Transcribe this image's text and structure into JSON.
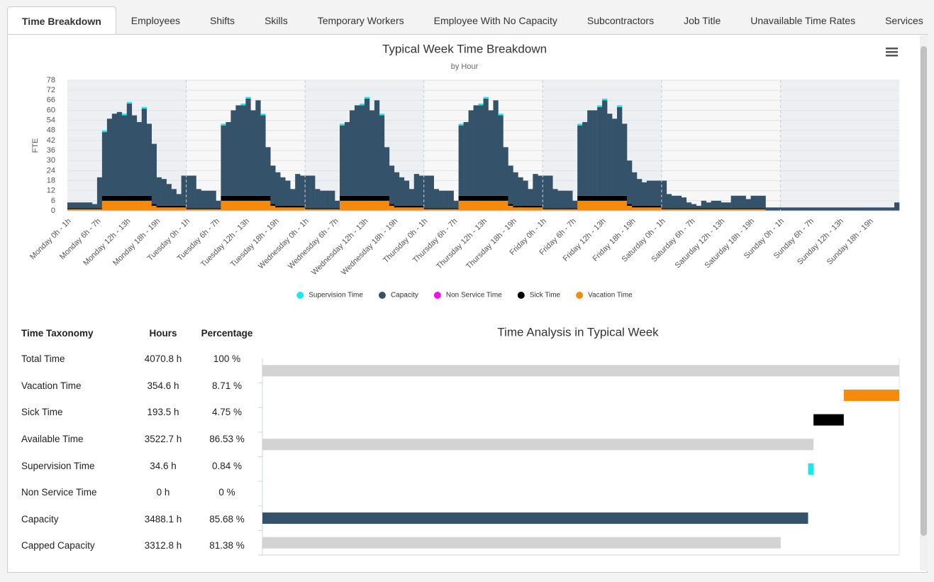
{
  "tabs": [
    "Time Breakdown",
    "Employees",
    "Shifts",
    "Skills",
    "Temporary Workers",
    "Employee With No Capacity",
    "Subcontractors",
    "Job Title",
    "Unavailable Time Rates",
    "Services"
  ],
  "chart_data": [
    {
      "type": "bar",
      "stacked": true,
      "title": "Typical Week Time Breakdown",
      "subtitle": "by Hour",
      "y_label": "FTE",
      "categories": [
        "Monday 0h - 1h",
        null,
        null,
        null,
        null,
        null,
        "Monday 6h - 7h",
        null,
        null,
        null,
        null,
        null,
        "Monday 12h - 13h",
        null,
        null,
        null,
        null,
        null,
        "Monday 18h - 19h",
        null,
        null,
        null,
        null,
        null,
        "Tuesday 0h - 1h",
        null,
        null,
        null,
        null,
        null,
        "Tuesday 6h - 7h",
        null,
        null,
        null,
        null,
        null,
        "Tuesday 12h - 13h",
        null,
        null,
        null,
        null,
        null,
        "Tuesday 18h - 19h",
        null,
        null,
        null,
        null,
        null,
        "Wednesday 0h - 1h",
        null,
        null,
        null,
        null,
        null,
        "Wednesday 6h - 7h",
        null,
        null,
        null,
        null,
        null,
        "Wednesday 12h - 13h",
        null,
        null,
        null,
        null,
        null,
        "Wednesday 18h - 19h",
        null,
        null,
        null,
        null,
        null,
        "Thursday 0h - 1h",
        null,
        null,
        null,
        null,
        null,
        "Thursday 6h - 7h",
        null,
        null,
        null,
        null,
        null,
        "Thursday 12h - 13h",
        null,
        null,
        null,
        null,
        null,
        "Thursday 18h - 19h",
        null,
        null,
        null,
        null,
        null,
        "Friday 0h - 1h",
        null,
        null,
        null,
        null,
        null,
        "Friday 6h - 7h",
        null,
        null,
        null,
        null,
        null,
        "Friday 12h - 13h",
        null,
        null,
        null,
        null,
        null,
        "Friday 18h - 19h",
        null,
        null,
        null,
        null,
        null,
        "Saturday 0h - 1h",
        null,
        null,
        null,
        null,
        null,
        "Saturday 6h - 7h",
        null,
        null,
        null,
        null,
        null,
        "Saturday 12h - 13h",
        null,
        null,
        null,
        null,
        null,
        "Saturday 18h - 19h",
        null,
        null,
        null,
        null,
        null,
        "Sunday 0h - 1h",
        null,
        null,
        null,
        null,
        null,
        "Sunday 6h - 7h",
        null,
        null,
        null,
        null,
        null,
        "Sunday 12h - 13h",
        null,
        null,
        null,
        null,
        null,
        "Sunday 18h - 19h",
        null,
        null,
        null,
        null,
        null
      ],
      "series": [
        {
          "name": "Supervision Time",
          "color": "#1ae8f0",
          "values": [
            0,
            0,
            0,
            0,
            0,
            0,
            0,
            1,
            0,
            0,
            0,
            1,
            1,
            0,
            0,
            1,
            0,
            0,
            0,
            0,
            0,
            0,
            0,
            0,
            0,
            0,
            0,
            0,
            0,
            0,
            0,
            1,
            0,
            0,
            0,
            1,
            1,
            0,
            0,
            1,
            0,
            0,
            0,
            0,
            0,
            0,
            0,
            0,
            0,
            0,
            0,
            0,
            0,
            0,
            0,
            1,
            0,
            0,
            0,
            1,
            1,
            0,
            0,
            1,
            0,
            0,
            0,
            0,
            0,
            0,
            0,
            0,
            0,
            0,
            0,
            0,
            0,
            0,
            0,
            1,
            0,
            0,
            0,
            1,
            1,
            0,
            0,
            1,
            0,
            0,
            0,
            0,
            0,
            0,
            0,
            0,
            0,
            0,
            0,
            0,
            0,
            0,
            0,
            1,
            0,
            0,
            0,
            1,
            1,
            0,
            0,
            1,
            0,
            0,
            0,
            0,
            0,
            0,
            0,
            0,
            0,
            0,
            0,
            0,
            0,
            0,
            0,
            0,
            0,
            0,
            0,
            0,
            0,
            0,
            0,
            0,
            0,
            0,
            0,
            0,
            0,
            0,
            0,
            0,
            0,
            0,
            0,
            0,
            0,
            0,
            0,
            0,
            0,
            0,
            0,
            0,
            0,
            0,
            0,
            0,
            0,
            0,
            0,
            0,
            0,
            0,
            0,
            0
          ]
        },
        {
          "name": "Capacity",
          "color": "#34536b",
          "values": [
            3.5,
            3.5,
            3.5,
            3.5,
            3.5,
            2.5,
            18.5,
            38,
            46,
            49,
            50,
            48,
            55,
            48,
            44,
            52,
            43,
            36,
            17,
            16,
            13,
            10,
            7,
            18,
            19.5,
            19.5,
            11.5,
            10.5,
            10.5,
            10.5,
            4.5,
            42,
            44,
            51,
            54,
            54,
            58,
            51,
            57,
            48,
            29,
            23,
            20,
            17,
            15,
            10,
            19,
            18,
            19.5,
            19.5,
            11.5,
            10.5,
            10.5,
            10.5,
            4.5,
            42,
            44,
            51,
            54,
            54,
            58,
            51,
            57,
            48,
            29,
            23,
            20,
            17,
            15,
            10,
            19,
            18,
            19.5,
            19.5,
            11.5,
            10.5,
            10.5,
            10.5,
            4.5,
            42,
            44,
            51,
            54,
            54,
            58,
            51,
            57,
            48,
            29,
            23,
            20,
            17,
            15,
            10,
            19,
            18,
            19.5,
            19.5,
            11.5,
            10.5,
            10.5,
            10.5,
            4.5,
            42,
            44,
            51,
            51,
            53,
            57,
            49,
            46,
            53,
            43,
            26,
            20,
            16,
            14,
            15,
            15,
            15,
            16.5,
            8.5,
            7.5,
            7.5,
            6.5,
            3.5,
            2.5,
            1.5,
            4.5,
            3.5,
            4.5,
            4.5,
            3.5,
            3.5,
            7.5,
            7.5,
            7.5,
            5.5,
            7.5,
            7.5,
            7.5,
            2,
            2,
            2,
            2,
            2,
            2,
            2,
            2,
            2,
            2,
            2,
            2,
            2,
            2,
            2,
            2,
            2,
            2,
            2,
            2,
            2,
            2,
            2,
            2,
            2,
            2,
            5
          ]
        },
        {
          "name": "Non Service Time",
          "color": "#f00ff0",
          "values": [
            0,
            0,
            0,
            0,
            0,
            0,
            0,
            0,
            0,
            0,
            0,
            0,
            0,
            0,
            0,
            0,
            0,
            0,
            0,
            0,
            0,
            0,
            0,
            0,
            0,
            0,
            0,
            0,
            0,
            0,
            0,
            0,
            0,
            0,
            0,
            0,
            0,
            0,
            0,
            0,
            0,
            0,
            0,
            0,
            0,
            0,
            0,
            0,
            0,
            0,
            0,
            0,
            0,
            0,
            0,
            0,
            0,
            0,
            0,
            0,
            0,
            0,
            0,
            0,
            0,
            0,
            0,
            0,
            0,
            0,
            0,
            0,
            0,
            0,
            0,
            0,
            0,
            0,
            0,
            0,
            0,
            0,
            0,
            0,
            0,
            0,
            0,
            0,
            0,
            0,
            0,
            0,
            0,
            0,
            0,
            0,
            0,
            0,
            0,
            0,
            0,
            0,
            0,
            0,
            0,
            0,
            0,
            0,
            0,
            0,
            0,
            0,
            0,
            0,
            0,
            0,
            0,
            0,
            0,
            0,
            0,
            0,
            0,
            0,
            0,
            0,
            0,
            0,
            0,
            0,
            0,
            0,
            0,
            0,
            0,
            0,
            0,
            0,
            0,
            0,
            0,
            0,
            0,
            0,
            0,
            0,
            0,
            0,
            0,
            0,
            0,
            0,
            0,
            0,
            0,
            0,
            0,
            0,
            0,
            0,
            0,
            0,
            0,
            0,
            0,
            0,
            0,
            0
          ]
        },
        {
          "name": "Sick Time",
          "color": "#000000",
          "values": [
            0.5,
            0.5,
            0.5,
            0.5,
            0.5,
            0.5,
            0.5,
            3,
            3,
            3,
            3,
            3,
            3,
            3,
            3,
            3,
            3,
            1,
            1,
            1,
            1,
            1,
            1,
            1,
            0.5,
            0.5,
            0.5,
            0.5,
            0.5,
            0.5,
            0.5,
            3,
            3,
            3,
            3,
            3,
            3,
            3,
            3,
            3,
            3,
            1,
            1,
            1,
            1,
            1,
            1,
            1,
            0.5,
            0.5,
            0.5,
            0.5,
            0.5,
            0.5,
            0.5,
            3,
            3,
            3,
            3,
            3,
            3,
            3,
            3,
            3,
            3,
            1,
            1,
            1,
            1,
            1,
            1,
            1,
            0.5,
            0.5,
            0.5,
            0.5,
            0.5,
            0.5,
            0.5,
            3,
            3,
            3,
            3,
            3,
            3,
            3,
            3,
            3,
            3,
            1,
            1,
            1,
            1,
            1,
            1,
            1,
            0.5,
            0.5,
            0.5,
            0.5,
            0.5,
            0.5,
            0.5,
            3,
            3,
            3,
            3,
            3,
            3,
            3,
            3,
            3,
            3,
            1,
            1,
            1,
            1,
            1,
            1,
            1,
            0.5,
            0.5,
            0.5,
            0.5,
            0.5,
            0.5,
            0.5,
            0.5,
            0.5,
            0.5,
            0.5,
            0.5,
            0.5,
            0.5,
            0.5,
            0.5,
            0.5,
            0.5,
            0.5,
            0.5,
            0.5,
            0,
            0,
            0,
            0,
            0,
            0,
            0,
            0,
            0,
            0,
            0,
            0,
            0,
            0,
            0,
            0,
            0,
            0,
            0,
            0,
            0,
            0,
            0,
            0,
            0,
            0,
            0
          ]
        },
        {
          "name": "Vacation Time",
          "color": "#f58a0b",
          "values": [
            1,
            1,
            1,
            1,
            1,
            1,
            1,
            6,
            6,
            6,
            6,
            6,
            6,
            6,
            6,
            6,
            6,
            3,
            2,
            2,
            2,
            2,
            2,
            2,
            1,
            1,
            1,
            1,
            1,
            1,
            1,
            6,
            6,
            6,
            6,
            6,
            6,
            6,
            6,
            6,
            6,
            3,
            2,
            2,
            2,
            2,
            2,
            2,
            1,
            1,
            1,
            1,
            1,
            1,
            1,
            6,
            6,
            6,
            6,
            6,
            6,
            6,
            6,
            6,
            6,
            3,
            2,
            2,
            2,
            2,
            2,
            2,
            1,
            1,
            1,
            1,
            1,
            1,
            1,
            6,
            6,
            6,
            6,
            6,
            6,
            6,
            6,
            6,
            6,
            3,
            2,
            2,
            2,
            2,
            2,
            2,
            1,
            1,
            1,
            1,
            1,
            1,
            1,
            6,
            6,
            6,
            6,
            6,
            6,
            6,
            6,
            6,
            6,
            3,
            2,
            2,
            2,
            2,
            2,
            2,
            1,
            1,
            1,
            1,
            1,
            1,
            1,
            1,
            1,
            1,
            1,
            1,
            1,
            1,
            1,
            1,
            1,
            1,
            1,
            1,
            1,
            0,
            0,
            0,
            0,
            0,
            0,
            0,
            0,
            0,
            0,
            0,
            0,
            0,
            0,
            0,
            0,
            0,
            0,
            0,
            0,
            0,
            0,
            0,
            0,
            0,
            0,
            0
          ]
        }
      ],
      "ylim": [
        0,
        78
      ],
      "yticks": [
        0,
        6,
        12,
        18,
        24,
        30,
        36,
        42,
        48,
        54,
        60,
        66,
        72,
        78
      ],
      "grid": true,
      "legend": "bottom"
    },
    {
      "type": "waterfall",
      "title": "Time Analysis in Typical Week",
      "values": [
        4070.8,
        354.6,
        193.5,
        3522.7,
        34.6,
        0,
        3488.1,
        3312.8
      ],
      "kinds": [
        "total",
        "decrease",
        "decrease",
        "total",
        "decrease",
        "decrease",
        "total",
        "total"
      ],
      "colors": [
        "#d3d3d3",
        "#f58a0b",
        "#000000",
        "#d3d3d3",
        "#1ae8f0",
        "#f00ff0",
        "#34536b",
        "#d3d3d3"
      ],
      "xlim": [
        0,
        4070.8
      ]
    }
  ],
  "table": {
    "header": [
      "Time Taxonomy",
      "Hours",
      "Percentage"
    ],
    "rows": [
      [
        "Total Time",
        "4070.8 h",
        "100 %"
      ],
      [
        "Vacation Time",
        "354.6 h",
        "8.71 %"
      ],
      [
        "Sick Time",
        "193.5 h",
        "4.75 %"
      ],
      [
        "Available Time",
        "3522.7 h",
        "86.53 %"
      ],
      [
        "Supervision Time",
        "34.6 h",
        "0.84 %"
      ],
      [
        "Non Service Time",
        "0 h",
        "0 %"
      ],
      [
        "Capacity",
        "3488.1 h",
        "85.68 %"
      ],
      [
        "Capped Capacity",
        "3312.8 h",
        "81.38 %"
      ]
    ]
  }
}
